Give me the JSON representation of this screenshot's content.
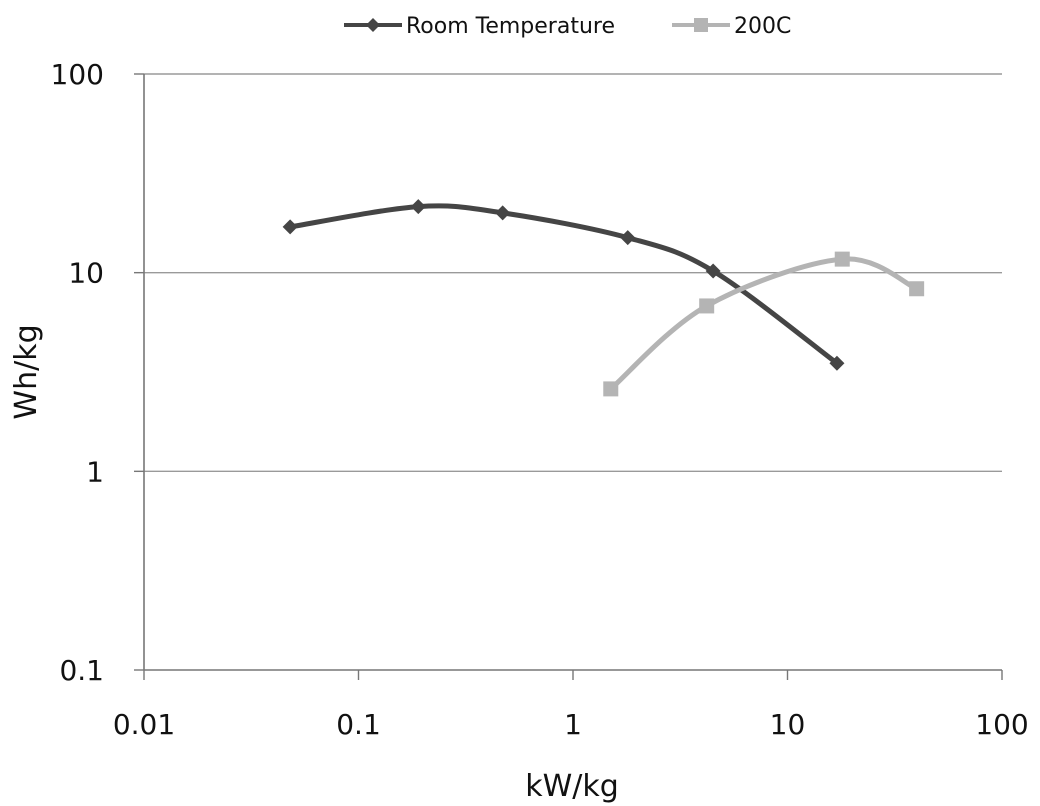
{
  "chart_data": {
    "type": "line",
    "x_scale": "log",
    "y_scale": "log",
    "xlabel": "kW/kg",
    "ylabel": "Wh/kg",
    "xlim": [
      0.01,
      100
    ],
    "ylim": [
      0.1,
      100
    ],
    "x_ticks": [
      "0.01",
      "0.1",
      "1",
      "10",
      "100"
    ],
    "y_ticks": [
      "0.1",
      "1",
      "10",
      "100"
    ],
    "grid": "horizontal major",
    "legend_position": "top",
    "series": [
      {
        "name": "Room Temperature",
        "color": "#454545",
        "marker": "diamond",
        "x": [
          0.048,
          0.19,
          0.47,
          1.8,
          4.5,
          17
        ],
        "y": [
          17,
          21.5,
          20,
          15,
          10.2,
          3.5
        ]
      },
      {
        "name": "200C",
        "color": "#b4b4b4",
        "marker": "square",
        "x": [
          1.5,
          4.2,
          18,
          40
        ],
        "y": [
          2.6,
          6.8,
          11.7,
          8.3
        ]
      }
    ]
  }
}
